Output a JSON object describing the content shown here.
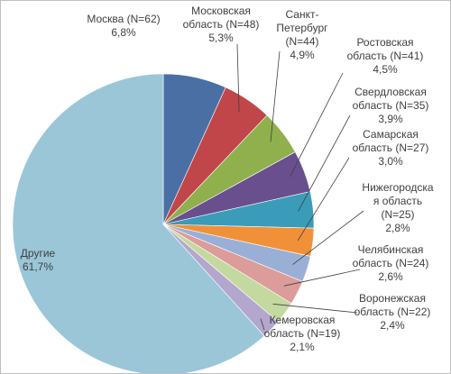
{
  "chart_data": {
    "type": "pie",
    "title": "",
    "legend": "none",
    "slices": [
      {
        "name": "Москва (N=62)",
        "value": 6.8,
        "label": [
          "Москва (N=62)",
          "6,8%"
        ],
        "color": "#4a6fa5"
      },
      {
        "name": "Московская область (N=48)",
        "value": 5.3,
        "label": [
          "Московская",
          "область (N=48)",
          "5,3%"
        ],
        "color": "#c0464a"
      },
      {
        "name": "Санкт-Петербург (N=44)",
        "value": 4.9,
        "label": [
          "Санкт-",
          "Петербург",
          "(N=44)",
          "4,9%"
        ],
        "color": "#8fb04c"
      },
      {
        "name": "Ростовская область (N=41)",
        "value": 4.5,
        "label": [
          "Ростовская",
          "область (N=41)",
          "4,5%"
        ],
        "color": "#6a4f8f"
      },
      {
        "name": "Свердловская область (N=35)",
        "value": 3.9,
        "label": [
          "Свердловская",
          "область (N=35)",
          "3,9%"
        ],
        "color": "#3a9cb8"
      },
      {
        "name": "Самарская область (N=27)",
        "value": 3.0,
        "label": [
          "Самарская",
          "область (N=27)",
          "3,0%"
        ],
        "color": "#f0913a"
      },
      {
        "name": "Нижегородская область (N=25)",
        "value": 2.8,
        "label": [
          "Нижегородска",
          "я область",
          "(N=25)",
          "2,8%"
        ],
        "color": "#9aafd6"
      },
      {
        "name": "Челябинская область (N=24)",
        "value": 2.6,
        "label": [
          "Челябинская",
          "область (N=24)",
          "2,6%"
        ],
        "color": "#dc9c9a"
      },
      {
        "name": "Воронежская область (N=22)",
        "value": 2.4,
        "label": [
          "Воронежская",
          "область (N=22)",
          "2,4%"
        ],
        "color": "#c4d9a0"
      },
      {
        "name": "Кемеровская область (N=19)",
        "value": 2.1,
        "label": [
          "Кемеровская",
          "область (N=19)",
          "2,1%"
        ],
        "color": "#b3a7cd"
      },
      {
        "name": "Другие",
        "value": 61.7,
        "label": [
          "Другие",
          "61,7%"
        ],
        "color": "#9ac6d8"
      }
    ]
  }
}
